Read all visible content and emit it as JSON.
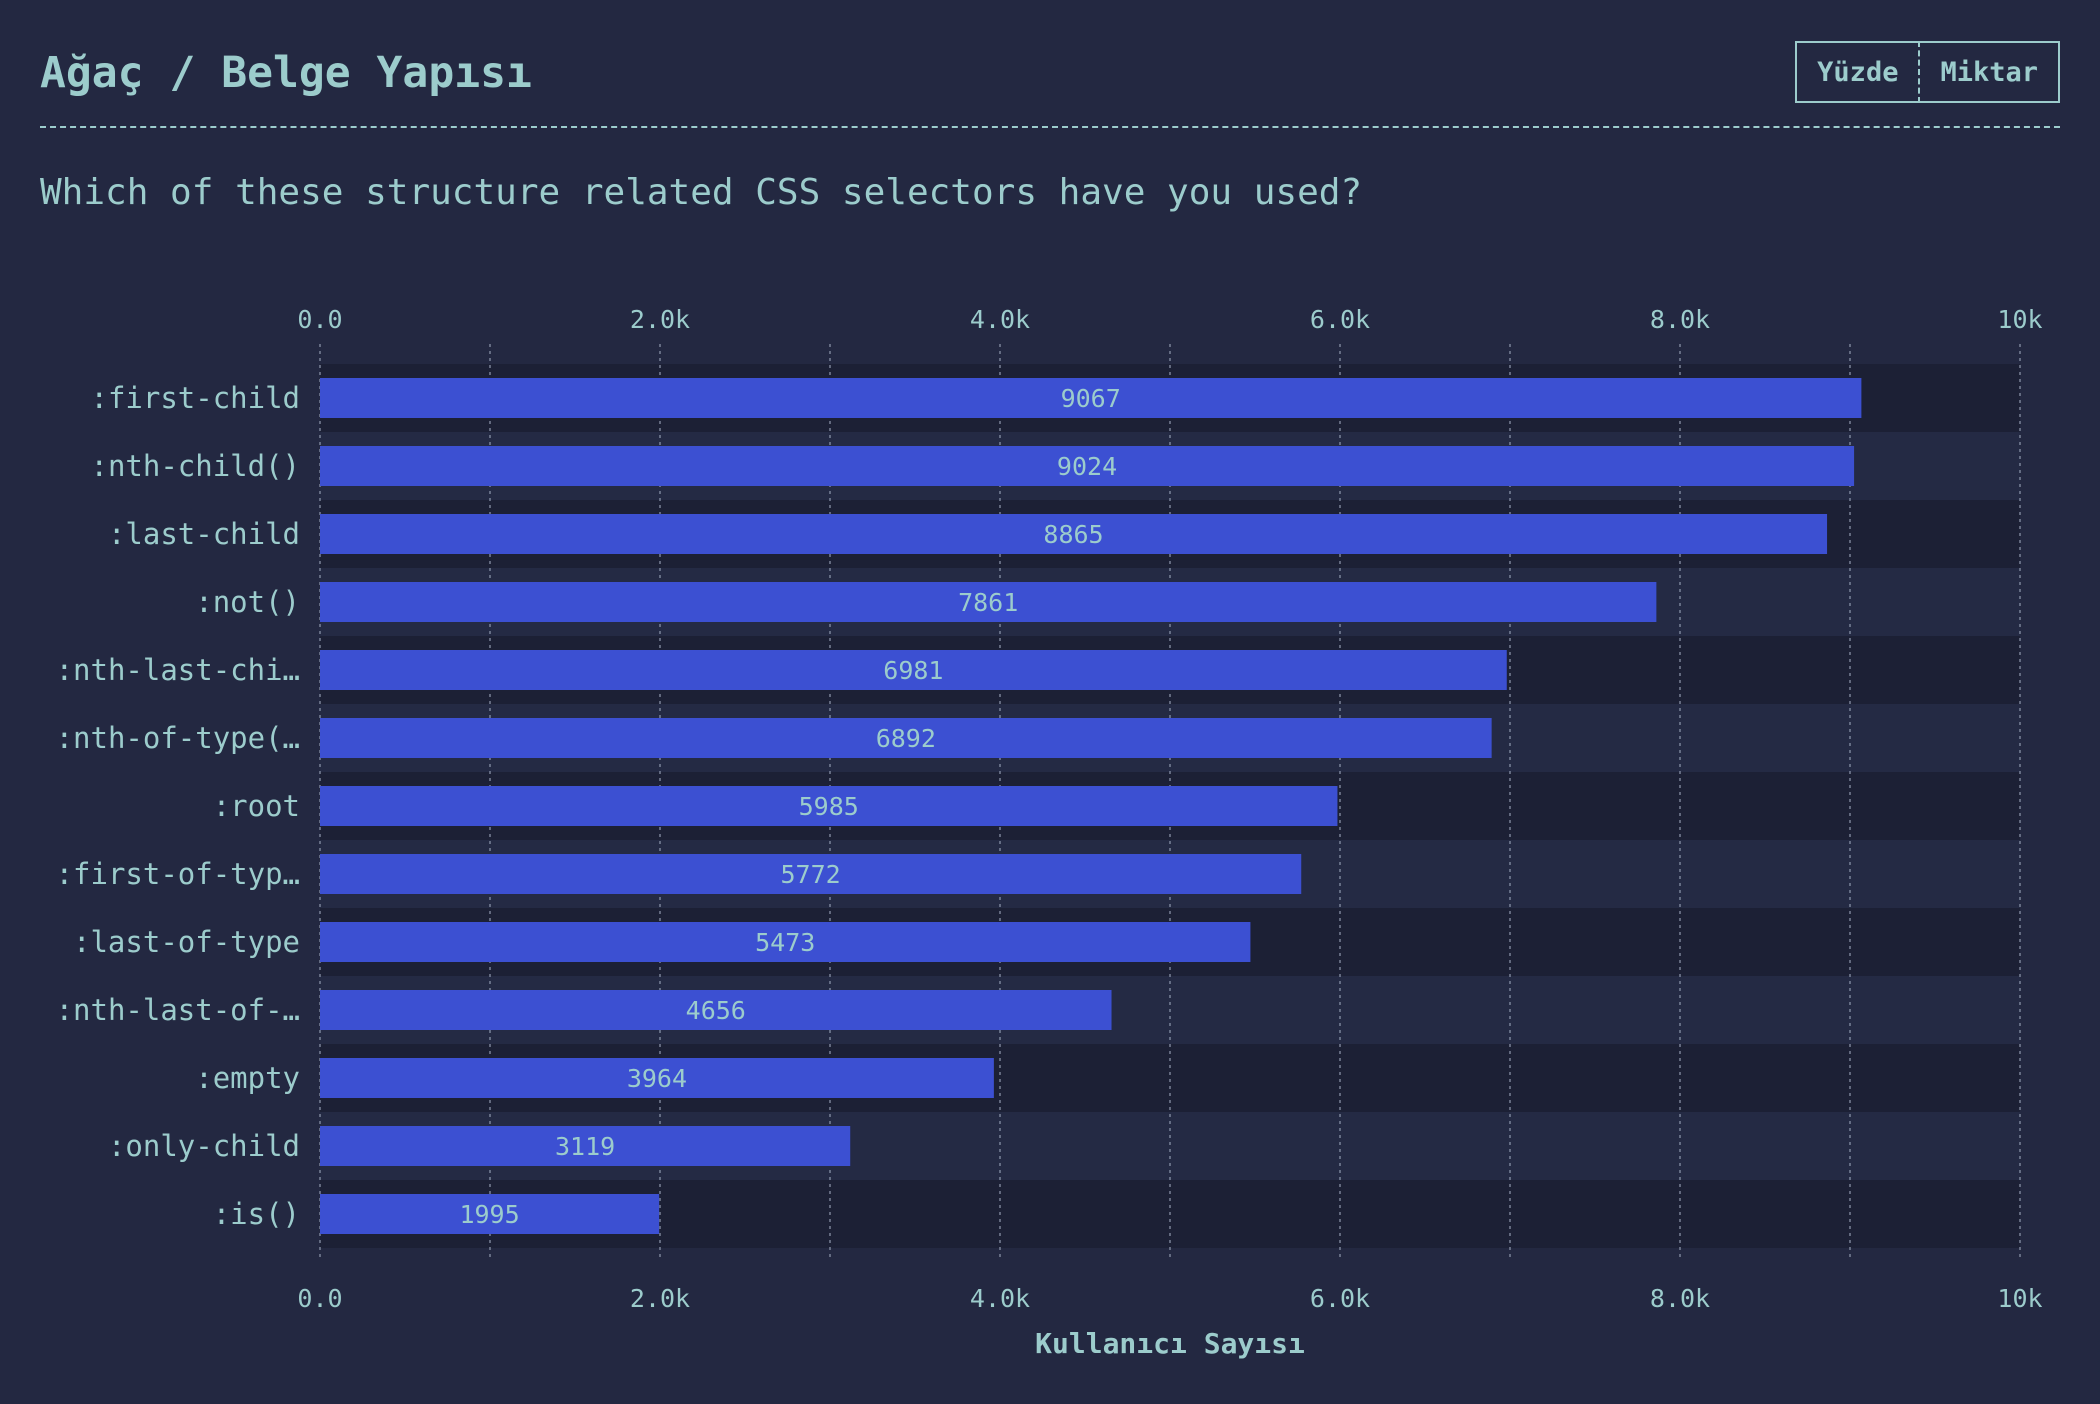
{
  "header": {
    "title": "Ağaç / Belge Yapısı",
    "toggle": {
      "percent_label": "Yüzde",
      "count_label": "Miktar",
      "selected": "Miktar"
    }
  },
  "question": "Which of these structure related CSS selectors have you used?",
  "colors": {
    "background": "#232841",
    "bar": "#3c50d2",
    "text": "#9ccccc",
    "row_dark": "#1c2035",
    "row_light": "#242a44",
    "grid": "#8a93a8"
  },
  "chart_data": {
    "type": "bar",
    "orientation": "horizontal",
    "categories": [
      ":first-child",
      ":nth-child()",
      ":last-child",
      ":not()",
      ":nth-last-chi…",
      ":nth-of-type(…",
      ":root",
      ":first-of-typ…",
      ":last-of-type",
      ":nth-last-of-…",
      ":empty",
      ":only-child",
      ":is()"
    ],
    "values": [
      9067,
      9024,
      8865,
      7861,
      6981,
      6892,
      5985,
      5772,
      5473,
      4656,
      3964,
      3119,
      1995
    ],
    "data_labels": [
      "9067",
      "9024",
      "8865",
      "7861",
      "6981",
      "6892",
      "5985",
      "5772",
      "5473",
      "4656",
      "3964",
      "3119",
      "1995"
    ],
    "xlim": [
      0,
      10000
    ],
    "xticks": [
      0,
      2000,
      4000,
      6000,
      8000,
      10000
    ],
    "xtick_labels": [
      "0.0",
      "2.0k",
      "4.0k",
      "6.0k",
      "8.0k",
      "10k"
    ],
    "minor_grid": [
      1000,
      3000,
      5000,
      7000,
      9000
    ],
    "xlabel": "Kullanıcı Sayısı",
    "ylabel": "",
    "grid": true,
    "tick_axes": "top and bottom"
  }
}
